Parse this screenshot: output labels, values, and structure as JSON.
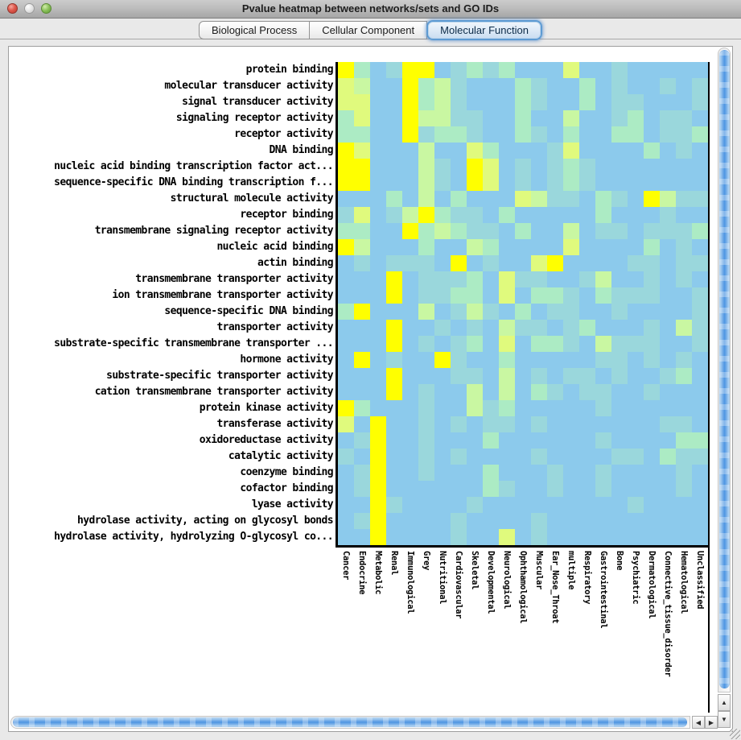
{
  "window": {
    "title": "Pvalue heatmap between networks/sets and GO IDs"
  },
  "tabs": [
    {
      "label": "Biological Process",
      "selected": false
    },
    {
      "label": "Cellular Component",
      "selected": false
    },
    {
      "label": "Molecular Function",
      "selected": true
    }
  ],
  "scrollbars": {
    "up_glyph": "▲",
    "down_glyph": "▼",
    "left_glyph": "◀",
    "right_glyph": "▶"
  },
  "chart_data": {
    "type": "heatmap",
    "title": "Pvalue heatmap between networks/sets and GO IDs",
    "rows": [
      "protein binding",
      "molecular transducer activity",
      "signal transducer activity",
      "signaling receptor activity",
      "receptor activity",
      "DNA binding",
      "nucleic acid binding transcription factor act...",
      "sequence-specific DNA binding transcription f...",
      "structural molecule activity",
      "receptor binding",
      "transmembrane signaling receptor activity",
      "nucleic acid binding",
      "actin binding",
      "transmembrane transporter activity",
      "ion transmembrane transporter activity",
      "sequence-specific DNA binding",
      "transporter activity",
      "substrate-specific transmembrane transporter ...",
      "hormone activity",
      "substrate-specific transporter activity",
      "cation transmembrane transporter activity",
      "protein kinase activity",
      "transferase activity",
      "oxidoreductase activity",
      "catalytic activity",
      "coenzyme binding",
      "cofactor binding",
      "lyase activity",
      "hydrolase activity, acting on glycosyl bonds",
      "hydrolase activity, hydrolyzing O-glycosyl co..."
    ],
    "columns": [
      "Cancer",
      "Endocrine",
      "Metabolic",
      "Renal",
      "Immunological",
      "Grey",
      "Nutritional",
      "Cardiovascular",
      "Skeletal",
      "Developmental",
      "Neurological",
      "Ophthamological",
      "Muscular",
      "Ear_Nose_Throat",
      "multiple",
      "Respiratory",
      "Gastrointestinal",
      "Bone",
      "Psychiatric",
      "Dermatological",
      "Connective_tissue_disorder",
      "Hematological",
      "Unclassified"
    ],
    "palette": {
      "0": "#8CCAEC",
      "1": "#9AD7DC",
      "2": "#ACEBC4",
      "3": "#C9F7A2",
      "4": "#E0FA7D",
      "5": "#FFFF00"
    },
    "palette_meaning": "0 = least significant (blue) … 5 = most significant (yellow)",
    "grid": [
      [
        5,
        2,
        0,
        1,
        5,
        5,
        0,
        1,
        2,
        1,
        2,
        0,
        0,
        0,
        4,
        0,
        0,
        1,
        0,
        0,
        0,
        0,
        0
      ],
      [
        4,
        3,
        0,
        0,
        5,
        2,
        3,
        1,
        0,
        0,
        0,
        2,
        1,
        0,
        0,
        2,
        0,
        1,
        0,
        0,
        1,
        0,
        1
      ],
      [
        4,
        4,
        0,
        0,
        5,
        2,
        3,
        1,
        0,
        0,
        0,
        2,
        1,
        0,
        0,
        2,
        0,
        1,
        1,
        0,
        0,
        0,
        1
      ],
      [
        2,
        4,
        0,
        0,
        5,
        3,
        3,
        1,
        1,
        0,
        0,
        2,
        0,
        0,
        3,
        0,
        0,
        1,
        2,
        0,
        1,
        1,
        0
      ],
      [
        2,
        2,
        0,
        0,
        5,
        1,
        2,
        2,
        1,
        0,
        0,
        2,
        1,
        0,
        2,
        0,
        0,
        2,
        2,
        0,
        1,
        1,
        2
      ],
      [
        5,
        4,
        0,
        0,
        0,
        3,
        0,
        0,
        4,
        2,
        0,
        0,
        0,
        1,
        4,
        0,
        0,
        0,
        0,
        2,
        0,
        1,
        0
      ],
      [
        5,
        5,
        0,
        0,
        0,
        3,
        1,
        0,
        5,
        4,
        0,
        1,
        0,
        1,
        2,
        1,
        0,
        0,
        0,
        0,
        0,
        0,
        0
      ],
      [
        5,
        5,
        0,
        0,
        0,
        3,
        1,
        0,
        5,
        4,
        0,
        1,
        0,
        1,
        2,
        1,
        0,
        0,
        0,
        0,
        0,
        0,
        0
      ],
      [
        0,
        0,
        0,
        2,
        0,
        3,
        0,
        2,
        0,
        0,
        0,
        4,
        3,
        1,
        1,
        0,
        2,
        1,
        0,
        5,
        3,
        1,
        1
      ],
      [
        1,
        4,
        0,
        1,
        3,
        5,
        2,
        1,
        1,
        0,
        2,
        0,
        0,
        0,
        0,
        0,
        2,
        0,
        0,
        0,
        1,
        0,
        0
      ],
      [
        2,
        2,
        0,
        0,
        5,
        2,
        3,
        2,
        1,
        1,
        0,
        2,
        0,
        0,
        3,
        0,
        1,
        1,
        0,
        1,
        1,
        1,
        2
      ],
      [
        5,
        3,
        0,
        0,
        0,
        2,
        0,
        0,
        3,
        2,
        0,
        0,
        0,
        0,
        4,
        0,
        0,
        0,
        0,
        2,
        0,
        1,
        0
      ],
      [
        0,
        1,
        0,
        1,
        1,
        1,
        0,
        5,
        0,
        1,
        0,
        0,
        4,
        5,
        0,
        0,
        0,
        0,
        1,
        1,
        0,
        1,
        1
      ],
      [
        0,
        0,
        0,
        5,
        0,
        1,
        1,
        1,
        2,
        0,
        4,
        1,
        1,
        0,
        0,
        1,
        3,
        0,
        0,
        1,
        0,
        1,
        0
      ],
      [
        0,
        0,
        0,
        5,
        0,
        1,
        1,
        2,
        2,
        0,
        4,
        0,
        2,
        2,
        1,
        0,
        2,
        1,
        1,
        1,
        0,
        0,
        1
      ],
      [
        2,
        5,
        0,
        0,
        0,
        3,
        0,
        1,
        3,
        1,
        0,
        2,
        0,
        1,
        1,
        0,
        0,
        1,
        0,
        0,
        0,
        0,
        1
      ],
      [
        0,
        0,
        0,
        5,
        0,
        0,
        1,
        0,
        1,
        0,
        3,
        1,
        1,
        0,
        1,
        2,
        0,
        0,
        0,
        1,
        0,
        3,
        1
      ],
      [
        0,
        0,
        0,
        5,
        0,
        1,
        0,
        1,
        2,
        0,
        4,
        0,
        2,
        2,
        1,
        0,
        3,
        1,
        1,
        1,
        0,
        0,
        1
      ],
      [
        0,
        5,
        0,
        1,
        0,
        0,
        5,
        1,
        0,
        0,
        2,
        0,
        0,
        0,
        0,
        0,
        1,
        1,
        0,
        1,
        0,
        1,
        0
      ],
      [
        0,
        0,
        0,
        5,
        0,
        0,
        0,
        1,
        1,
        0,
        3,
        0,
        1,
        0,
        1,
        1,
        0,
        1,
        0,
        0,
        1,
        2,
        0
      ],
      [
        0,
        0,
        0,
        5,
        0,
        1,
        0,
        0,
        3,
        0,
        3,
        0,
        2,
        1,
        0,
        1,
        1,
        0,
        0,
        1,
        0,
        0,
        0
      ],
      [
        5,
        2,
        0,
        0,
        0,
        1,
        0,
        0,
        3,
        1,
        2,
        0,
        0,
        0,
        0,
        0,
        1,
        0,
        0,
        0,
        0,
        0,
        0
      ],
      [
        4,
        0,
        5,
        0,
        0,
        1,
        0,
        1,
        0,
        1,
        1,
        0,
        1,
        0,
        0,
        0,
        0,
        0,
        0,
        0,
        1,
        1,
        0
      ],
      [
        0,
        1,
        5,
        0,
        0,
        1,
        0,
        0,
        0,
        2,
        0,
        0,
        0,
        0,
        0,
        0,
        1,
        0,
        0,
        0,
        0,
        2,
        2
      ],
      [
        1,
        0,
        5,
        0,
        0,
        1,
        0,
        1,
        0,
        0,
        0,
        0,
        1,
        0,
        0,
        0,
        0,
        1,
        1,
        0,
        2,
        1,
        1
      ],
      [
        0,
        1,
        5,
        0,
        0,
        1,
        0,
        0,
        0,
        2,
        0,
        0,
        0,
        1,
        0,
        0,
        1,
        0,
        0,
        0,
        0,
        1,
        0
      ],
      [
        0,
        1,
        5,
        0,
        0,
        0,
        0,
        0,
        0,
        2,
        1,
        0,
        0,
        1,
        0,
        0,
        1,
        0,
        0,
        0,
        0,
        1,
        0
      ],
      [
        0,
        0,
        5,
        1,
        0,
        0,
        0,
        0,
        1,
        0,
        0,
        0,
        0,
        0,
        0,
        0,
        0,
        0,
        1,
        0,
        0,
        0,
        0
      ],
      [
        0,
        1,
        5,
        0,
        0,
        0,
        0,
        1,
        0,
        0,
        0,
        0,
        1,
        0,
        0,
        0,
        0,
        0,
        0,
        0,
        0,
        0,
        0
      ],
      [
        0,
        0,
        5,
        0,
        0,
        0,
        0,
        1,
        0,
        0,
        4,
        0,
        1,
        0,
        0,
        0,
        0,
        0,
        0,
        0,
        0,
        0,
        0
      ]
    ]
  }
}
